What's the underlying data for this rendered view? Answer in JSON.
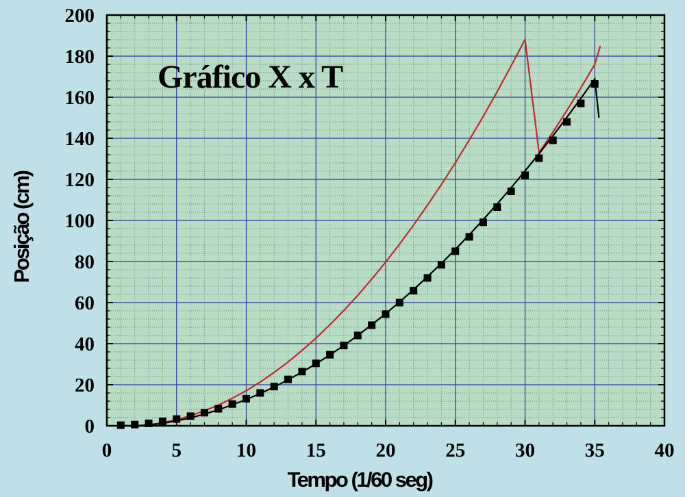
{
  "chart_data": {
    "type": "scatter",
    "title": "Gráfico X x T",
    "xlabel": "Tempo (1/60 seg)",
    "ylabel": "Posição (cm)",
    "xlim": [
      0,
      40
    ],
    "ylim": [
      0,
      200
    ],
    "x_ticks": [
      "0",
      "5",
      "10",
      "15",
      "20",
      "25",
      "30",
      "35",
      "40"
    ],
    "y_ticks": [
      "0",
      "20",
      "40",
      "60",
      "80",
      "100",
      "120",
      "140",
      "160",
      "180",
      "200"
    ],
    "grid": true,
    "colors": {
      "background": "#bfe0e6",
      "plot_background": "#b9dcc4",
      "major_grid": "#2c3a9e",
      "minor_grid": "#6f8a86",
      "points": "#000000",
      "upper_curve": "#c0292d",
      "lower_curve": "#000000"
    },
    "series": [
      {
        "kind": "points",
        "marker": "square",
        "x": [
          1,
          2,
          3,
          4,
          5,
          6,
          7,
          8,
          9,
          10,
          11,
          12,
          13,
          14,
          15,
          16,
          17,
          18,
          19,
          20,
          21,
          22,
          23,
          24,
          25,
          26,
          27,
          28,
          29,
          30,
          31,
          32,
          33,
          34,
          35
        ],
        "y": [
          0.3,
          0.6,
          1.2,
          2.2,
          3.3,
          4.7,
          6.4,
          8.3,
          10.6,
          13.2,
          16.0,
          19.1,
          22.6,
          26.4,
          30.4,
          34.6,
          39.1,
          44.0,
          49.0,
          54.4,
          60.0,
          65.8,
          72.0,
          78.4,
          85.0,
          92.0,
          99.1,
          106.5,
          114.2,
          122.0,
          130.3,
          139.0,
          148.0,
          157.0,
          166.5
        ]
      },
      {
        "kind": "line",
        "x": [
          1,
          1.5,
          2,
          2.5,
          3,
          4,
          5,
          6,
          7,
          8,
          9,
          10,
          11,
          12,
          13,
          14,
          15,
          16,
          17,
          18,
          19,
          20,
          21,
          22,
          23,
          24,
          25,
          26,
          27,
          28,
          29,
          30,
          31,
          32,
          33,
          34,
          35,
          35.4
        ],
        "y": [
          0.3,
          0,
          0,
          0.2,
          0.5,
          1.5,
          3.0,
          4.9,
          7.3,
          10.1,
          13.4,
          17.1,
          21.3,
          26.0,
          31.1,
          36.7,
          42.7,
          49.2,
          56.1,
          63.5,
          71.4,
          79.7,
          88.5,
          97.7,
          107.4,
          117.5,
          128.1,
          139.2,
          150.7,
          162.7,
          175.2,
          188.1,
          133.0,
          143.0,
          153.5,
          164.5,
          176.0,
          185.0
        ]
      },
      {
        "kind": "line",
        "x": [
          1,
          2,
          3,
          4,
          5,
          6,
          7,
          8,
          9,
          10,
          11,
          12,
          13,
          14,
          15,
          16,
          17,
          18,
          19,
          20,
          21,
          22,
          23,
          24,
          25,
          26,
          27,
          28,
          29,
          30,
          31,
          32,
          33,
          34,
          35,
          35.3
        ],
        "y": [
          0,
          0,
          0.4,
          1.2,
          2.4,
          3.9,
          5.7,
          7.8,
          10.2,
          12.8,
          15.7,
          18.9,
          22.4,
          26.2,
          30.2,
          34.5,
          39.1,
          44.0,
          49.2,
          54.6,
          60.3,
          66.3,
          72.6,
          79.1,
          85.9,
          93.0,
          100.4,
          108.0,
          115.9,
          124.1,
          132.5,
          141.2,
          150.2,
          159.4,
          168.9,
          150.0
        ]
      }
    ]
  }
}
